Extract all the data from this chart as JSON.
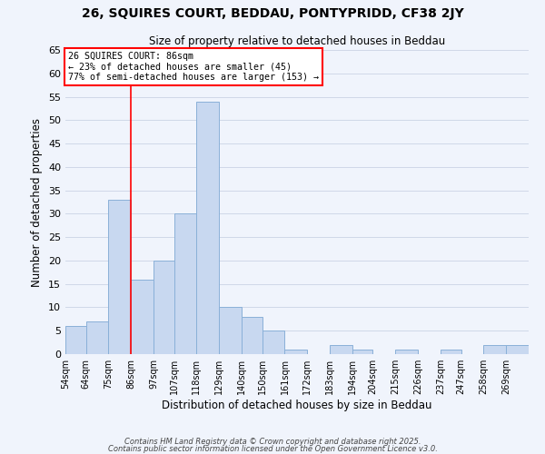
{
  "title1": "26, SQUIRES COURT, BEDDAU, PONTYPRIDD, CF38 2JY",
  "title2": "Size of property relative to detached houses in Beddau",
  "xlabel": "Distribution of detached houses by size in Beddau",
  "ylabel": "Number of detached properties",
  "bin_labels": [
    "54sqm",
    "64sqm",
    "75sqm",
    "86sqm",
    "97sqm",
    "107sqm",
    "118sqm",
    "129sqm",
    "140sqm",
    "150sqm",
    "161sqm",
    "172sqm",
    "183sqm",
    "194sqm",
    "204sqm",
    "215sqm",
    "226sqm",
    "237sqm",
    "247sqm",
    "258sqm",
    "269sqm"
  ],
  "bin_edges": [
    54,
    64,
    75,
    86,
    97,
    107,
    118,
    129,
    140,
    150,
    161,
    172,
    183,
    194,
    204,
    215,
    226,
    237,
    247,
    258,
    269,
    280
  ],
  "bar_heights": [
    6,
    7,
    33,
    16,
    20,
    30,
    54,
    10,
    8,
    5,
    1,
    0,
    2,
    1,
    0,
    1,
    0,
    1,
    0,
    2,
    2
  ],
  "bar_color": "#c8d8f0",
  "bar_edge_color": "#8ab0d8",
  "redline_x": 86,
  "ylim": [
    0,
    65
  ],
  "yticks": [
    0,
    5,
    10,
    15,
    20,
    25,
    30,
    35,
    40,
    45,
    50,
    55,
    60,
    65
  ],
  "annotation_title": "26 SQUIRES COURT: 86sqm",
  "annotation_line1": "← 23% of detached houses are smaller (45)",
  "annotation_line2": "77% of semi-detached houses are larger (153) →",
  "footer1": "Contains HM Land Registry data © Crown copyright and database right 2025.",
  "footer2": "Contains public sector information licensed under the Open Government Licence v3.0.",
  "background_color": "#f0f4fc",
  "grid_color": "#d0d8e8"
}
